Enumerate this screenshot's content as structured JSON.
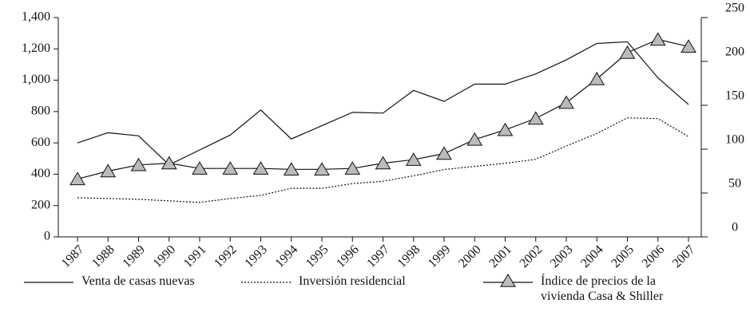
{
  "chart_data": {
    "type": "line",
    "categories": [
      "1987",
      "1988",
      "1989",
      "1990",
      "1991",
      "1992",
      "1993",
      "1994",
      "1995",
      "1996",
      "1997",
      "1998",
      "1999",
      "2000",
      "2001",
      "2002",
      "2003",
      "2004",
      "2005",
      "2006",
      "2007"
    ],
    "ylim": [
      0,
      1400
    ],
    "yticks": [
      0,
      200,
      400,
      600,
      800,
      {
        "value": 1000,
        "label": "1,000"
      },
      {
        "value": 1200,
        "label": "1,200"
      },
      {
        "value": 1400,
        "label": "1,400"
      }
    ],
    "y2lim": [
      0,
      250
    ],
    "y2ticks": [
      0,
      50,
      100,
      150,
      200,
      250
    ],
    "series": [
      {
        "name": "Venta de casas nuevas",
        "color": "#111111",
        "style": "solid",
        "values": [
          600,
          665,
          645,
          460,
          555,
          650,
          810,
          625,
          710,
          795,
          790,
          935,
          865,
          975,
          975,
          1040,
          1130,
          1235,
          1245,
          1015,
          845
        ]
      },
      {
        "name": "Inversión residencial",
        "color": "#111111",
        "style": "dotted",
        "values": [
          250,
          245,
          240,
          230,
          220,
          245,
          265,
          310,
          310,
          340,
          355,
          390,
          430,
          450,
          470,
          495,
          580,
          660,
          760,
          755,
          640
        ]
      },
      {
        "name": "Índice de precios de la vivienda Casa & Shiller",
        "color": "#111111",
        "marker_color": "#bbbbbb",
        "style": "triangle",
        "axis": "y2",
        "values": [
          66,
          75,
          82,
          84,
          78,
          78,
          78,
          77,
          77,
          78,
          84,
          88,
          95,
          111,
          122,
          135,
          153,
          180,
          210,
          225,
          217
        ]
      }
    ]
  }
}
